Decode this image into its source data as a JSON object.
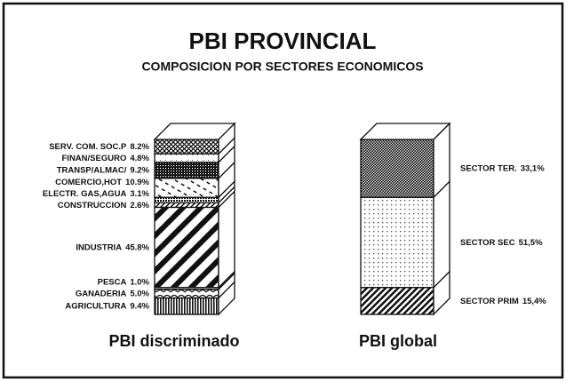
{
  "title": "PBI PROVINCIAL",
  "subtitle": "COMPOSICION POR SECTORES ECONOMICOS",
  "chart_data": [
    {
      "type": "stacked_bar",
      "title": "PBI discriminado",
      "categories": [
        "AGRICULTURA",
        "GANADERIA",
        "PESCA",
        "INDUSTRIA",
        "CONSTRUCCION",
        "ELECTR. GAS,AGUA",
        "COMERCIO,HOT",
        "TRANSP/ALMAC/",
        "FINAN/SEGURO",
        "SERV. COM. SOC.P"
      ],
      "values": [
        9.4,
        5.0,
        1.0,
        45.8,
        2.6,
        3.1,
        10.9,
        9.2,
        4.8,
        8.2
      ],
      "value_labels": [
        "9.4%",
        "5.0%",
        "1.0%",
        "45.8%",
        "2.6%",
        "3.1%",
        "10.9%",
        "9.2%",
        "4.8%",
        "8.2%"
      ],
      "ylim": [
        0,
        100
      ]
    },
    {
      "type": "stacked_bar",
      "title": "PBI global",
      "categories": [
        "SECTOR PRIM",
        "SECTOR SEC",
        "SECTOR TER."
      ],
      "values": [
        15.4,
        51.5,
        33.1
      ],
      "value_labels": [
        "15,4%",
        "51,5%",
        "33,1%"
      ],
      "ylim": [
        0,
        100
      ]
    }
  ]
}
